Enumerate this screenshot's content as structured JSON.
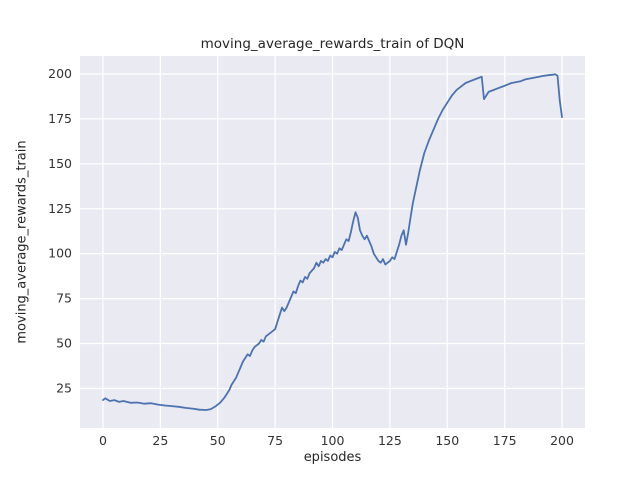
{
  "chart_data": {
    "type": "line",
    "title": "moving_average_rewards_train of DQN",
    "xlabel": "episodes",
    "ylabel": "moving_average_rewards_train",
    "series_name": "moving_average_rewards_train",
    "xlim": [
      -10,
      210
    ],
    "ylim": [
      3,
      210
    ],
    "xticks": [
      0,
      25,
      50,
      75,
      100,
      125,
      150,
      175,
      200
    ],
    "yticks": [
      25,
      50,
      75,
      100,
      125,
      150,
      175,
      200
    ],
    "grid": true,
    "legend": "none",
    "colors": {
      "line": "#4c72b0",
      "axes_bg": "#eaeaf2",
      "grid": "#ffffff",
      "figure_bg": "#ffffff",
      "tick": "#333333"
    },
    "x": [
      0,
      1,
      3,
      5,
      7,
      9,
      12,
      15,
      18,
      21,
      24,
      27,
      30,
      33,
      36,
      39,
      42,
      45,
      47,
      49,
      51,
      53,
      55,
      56,
      58,
      59,
      60,
      61,
      62,
      63,
      64,
      65,
      66,
      68,
      69,
      70,
      71,
      73,
      75,
      76,
      77,
      78,
      79,
      80,
      81,
      82,
      83,
      84,
      85,
      86,
      87,
      88,
      89,
      90,
      92,
      93,
      94,
      95,
      96,
      97,
      98,
      99,
      100,
      101,
      102,
      103,
      104,
      105,
      106,
      107,
      108,
      109,
      110,
      111,
      112,
      113,
      114,
      115,
      116,
      117,
      118,
      119,
      120,
      121,
      122,
      123,
      124,
      125,
      126,
      127,
      128,
      129,
      130,
      131,
      132,
      133,
      134,
      135,
      136,
      137,
      138,
      139,
      140,
      142,
      144,
      146,
      148,
      150,
      152,
      154,
      156,
      158,
      160,
      162,
      164,
      165,
      166,
      167,
      168,
      170,
      172,
      174,
      176,
      178,
      180,
      182,
      184,
      186,
      188,
      190,
      192,
      194,
      196,
      197,
      198,
      199,
      200
    ],
    "y": [
      18.5,
      19.5,
      18,
      18.5,
      17.5,
      18,
      17,
      17.2,
      16.5,
      16.8,
      16,
      15.5,
      15.2,
      14.8,
      14.2,
      13.8,
      13.2,
      13,
      13.5,
      15,
      17,
      20,
      24,
      27,
      31,
      34,
      37,
      40,
      42,
      44,
      43,
      46,
      48,
      50,
      52,
      51,
      54,
      56,
      58,
      62,
      66,
      70,
      68,
      70,
      73,
      76,
      79,
      78,
      82,
      85,
      84,
      87,
      86,
      89,
      92,
      95,
      93,
      96,
      95,
      97,
      96,
      99,
      98,
      101,
      100,
      103,
      102,
      105,
      108,
      107,
      112,
      118,
      123,
      120,
      113,
      110,
      108,
      110,
      107,
      104,
      100,
      98,
      96,
      95,
      97,
      94,
      95,
      96,
      98,
      97,
      101,
      105,
      110,
      113,
      105,
      112,
      120,
      128,
      134,
      140,
      146,
      151,
      156,
      163,
      169,
      175,
      180,
      184,
      188,
      191,
      193,
      195,
      196,
      197,
      198,
      198.5,
      186,
      188,
      190,
      191,
      192,
      193,
      194,
      195,
      195.5,
      196,
      197,
      197.5,
      198,
      198.5,
      199,
      199.3,
      199.6,
      199.8,
      199,
      185,
      176
    ]
  }
}
